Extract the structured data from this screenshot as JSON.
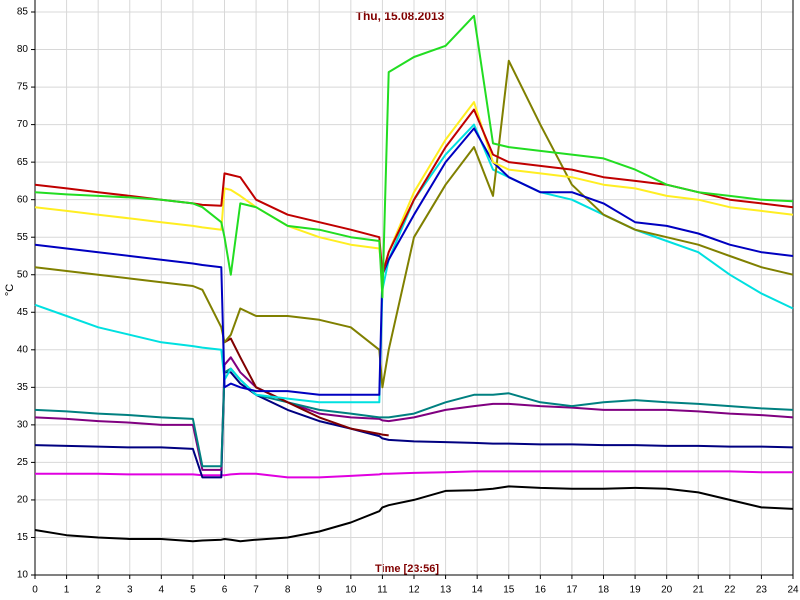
{
  "chart_data": {
    "type": "line",
    "title": "Thu, 15.08.2013",
    "x_label": "Time [23:56]",
    "y_label": "°C",
    "xlim": [
      0,
      24
    ],
    "xticks": [
      0,
      1,
      2,
      3,
      4,
      5,
      6,
      7,
      8,
      9,
      10,
      11,
      12,
      13,
      14,
      15,
      16,
      17,
      18,
      19,
      20,
      21,
      22,
      23,
      24
    ],
    "ylim": [
      10,
      86.6
    ],
    "yticks": [
      10,
      15,
      20,
      25,
      30,
      35,
      40,
      45,
      50,
      55,
      60,
      65,
      70,
      75,
      80,
      85
    ],
    "grid": true,
    "x": [
      0,
      1,
      2,
      3,
      4,
      5,
      5.3,
      5.9,
      6,
      6.2,
      6.5,
      7,
      8,
      9,
      10,
      10.9,
      11,
      11.2,
      12,
      13,
      13.9,
      14.5,
      15,
      16,
      17,
      18,
      19,
      20,
      21,
      22,
      23,
      24
    ],
    "series": [
      {
        "color": "#000000",
        "values": [
          16,
          15.3,
          15,
          14.8,
          14.8,
          14.5,
          14.6,
          14.7,
          14.8,
          14.7,
          14.5,
          14.7,
          15,
          15.8,
          17,
          18.5,
          19,
          19.3,
          20,
          21.2,
          21.3,
          21.5,
          21.8,
          21.6,
          21.5,
          21.5,
          21.6,
          21.5,
          21,
          20,
          19,
          18.8
        ]
      },
      {
        "color": "#e000e0",
        "values": [
          23.5,
          23.5,
          23.5,
          23.4,
          23.4,
          23.4,
          23.3,
          23.3,
          23.3,
          23.4,
          23.5,
          23.5,
          23,
          23,
          23.2,
          23.4,
          23.5,
          23.5,
          23.6,
          23.7,
          23.8,
          23.8,
          23.8,
          23.8,
          23.8,
          23.8,
          23.8,
          23.8,
          23.8,
          23.8,
          23.7,
          23.7
        ]
      },
      {
        "color": "#000080",
        "values": [
          27.3,
          27.2,
          27.1,
          27,
          27,
          26.8,
          23,
          23,
          37,
          37,
          35.5,
          34,
          32,
          30.5,
          29.5,
          28.5,
          28.2,
          28,
          27.8,
          27.7,
          27.6,
          27.5,
          27.5,
          27.4,
          27.4,
          27.3,
          27.3,
          27.2,
          27.2,
          27.1,
          27.1,
          27
        ]
      },
      {
        "color": "#800080",
        "values": [
          31,
          30.8,
          30.5,
          30.3,
          30,
          30,
          24,
          24,
          38,
          39,
          37,
          35,
          33,
          31.5,
          31,
          30.8,
          30.6,
          30.5,
          31,
          32,
          32.5,
          32.8,
          32.8,
          32.5,
          32.3,
          32,
          32,
          32,
          31.8,
          31.5,
          31.3,
          31
        ]
      },
      {
        "color": "#008080",
        "values": [
          32,
          31.8,
          31.5,
          31.3,
          31,
          30.8,
          24.5,
          24.5,
          37,
          37.5,
          36,
          34,
          33,
          32,
          31.5,
          31,
          31,
          31,
          31.5,
          33,
          34,
          34,
          34.2,
          33,
          32.5,
          33,
          33.3,
          33,
          32.8,
          32.5,
          32.2,
          32
        ]
      },
      {
        "color": "#800000",
        "values": [
          null,
          null,
          null,
          null,
          null,
          null,
          null,
          null,
          41,
          41.5,
          39,
          35,
          33,
          31,
          29.5,
          28.8,
          28.7,
          28.6,
          null,
          null,
          null,
          null,
          null,
          null,
          null,
          null,
          null,
          null,
          null,
          null,
          null,
          null
        ]
      },
      {
        "color": "#00e0e0",
        "values": [
          46,
          44.5,
          43,
          42,
          41,
          40.5,
          40.3,
          40,
          36,
          37.5,
          36,
          34,
          33.5,
          33,
          33,
          33,
          48,
          52,
          60,
          66,
          70,
          64,
          63,
          61,
          60,
          58,
          56,
          54.5,
          53,
          50,
          47.5,
          45.5
        ]
      },
      {
        "color": "#808000",
        "values": [
          51,
          50.5,
          50,
          49.5,
          49,
          48.5,
          48,
          43,
          41,
          42,
          45.5,
          44.5,
          44.5,
          44,
          43,
          40,
          35,
          40,
          55,
          62,
          67,
          60.5,
          78.5,
          70,
          62,
          58,
          56,
          55,
          54,
          52.5,
          51,
          50
        ]
      },
      {
        "color": "#0000c0",
        "values": [
          54,
          53.5,
          53,
          52.5,
          52,
          51.5,
          51.3,
          51,
          35,
          35.5,
          35,
          34.5,
          34.5,
          34,
          34,
          34,
          50,
          52,
          58,
          65,
          69.5,
          65,
          63,
          61,
          61,
          59.5,
          57,
          56.5,
          55.5,
          54,
          53,
          52.5
        ]
      },
      {
        "color": "#ffee22",
        "values": [
          59,
          58.5,
          58,
          57.5,
          57,
          56.5,
          56.3,
          56,
          61.5,
          61.3,
          60.5,
          59,
          56.5,
          55,
          54,
          53.5,
          50,
          53,
          61,
          68,
          73,
          65,
          64,
          63.5,
          63,
          62,
          61.5,
          60.5,
          60,
          59,
          58.5,
          58
        ]
      },
      {
        "color": "#c00000",
        "values": [
          62,
          61.5,
          61,
          60.5,
          60,
          59.5,
          59.3,
          59.2,
          63.5,
          63.3,
          63,
          60,
          58,
          57,
          56,
          55,
          50,
          53,
          60,
          67,
          72,
          66,
          65,
          64.5,
          64,
          63,
          62.5,
          62,
          61,
          60,
          59.5,
          59
        ]
      },
      {
        "color": "#22dd22",
        "values": [
          61,
          60.7,
          60.5,
          60.3,
          60,
          59.5,
          59,
          57,
          55,
          50,
          59.5,
          59,
          56.5,
          56,
          55,
          54.5,
          47,
          77,
          79,
          80.5,
          84.5,
          67.5,
          67,
          66.5,
          66,
          65.5,
          64,
          62,
          61,
          60.5,
          60,
          59.8
        ]
      }
    ]
  }
}
